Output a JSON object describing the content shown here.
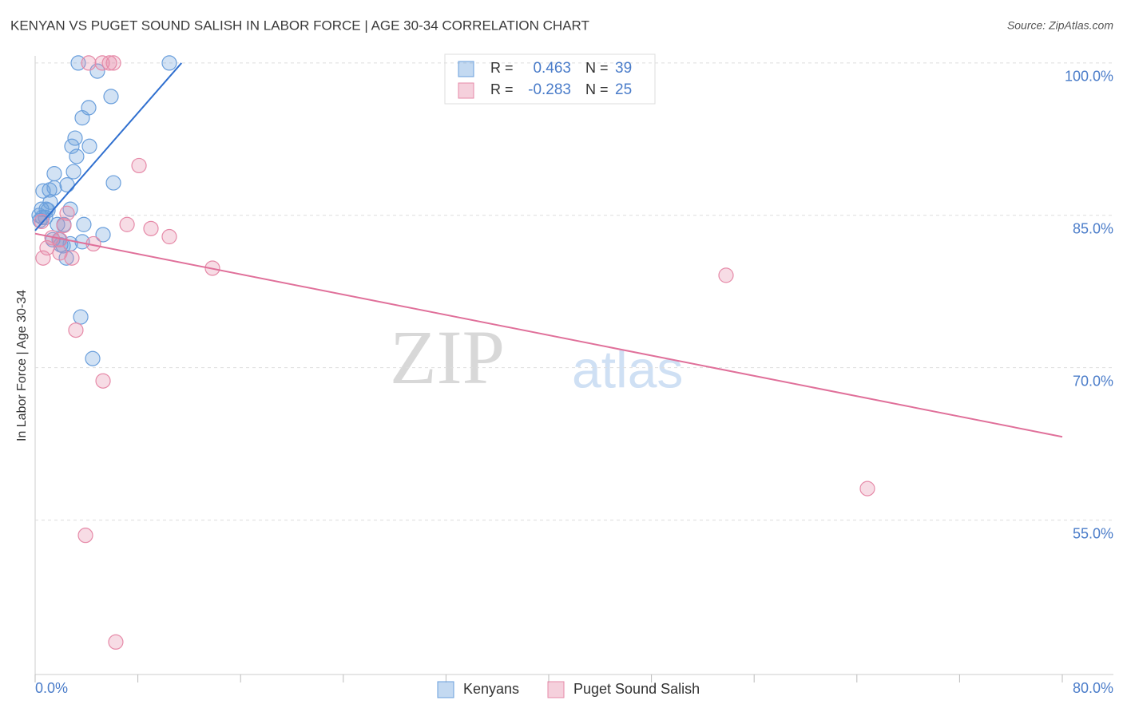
{
  "chart_data": {
    "type": "scatter",
    "title": "KENYAN VS PUGET SOUND SALISH IN LABOR FORCE | AGE 30-34 CORRELATION CHART",
    "source": "Source: ZipAtlas.com",
    "y_label": "In Labor Force | Age 30-34",
    "watermark": [
      "ZIP",
      "atlas"
    ],
    "xlim": [
      0,
      80
    ],
    "ylim": [
      39.8,
      100.7
    ],
    "xticks": [
      {
        "value": 0,
        "label": "0.0%"
      },
      {
        "value": 8,
        "label": null
      },
      {
        "value": 16,
        "label": null
      },
      {
        "value": 24,
        "label": null
      },
      {
        "value": 32,
        "label": null
      },
      {
        "value": 40,
        "label": null
      },
      {
        "value": 48,
        "label": null
      },
      {
        "value": 56,
        "label": null
      },
      {
        "value": 64,
        "label": null
      },
      {
        "value": 72,
        "label": null
      },
      {
        "value": 80,
        "label": "80.0%"
      }
    ],
    "yticks": [
      {
        "value": 55,
        "label": "55.0%"
      },
      {
        "value": 70,
        "label": "70.0%"
      },
      {
        "value": 85,
        "label": "85.0%"
      },
      {
        "value": 100,
        "label": "100.0%"
      }
    ],
    "grid": true,
    "series": [
      {
        "name": "Kenyans",
        "color": "#6a9fdc",
        "r_label": "R =",
        "r": "0.463",
        "n_label": "N =",
        "n": "39",
        "trend": {
          "color": "#2f6fcf",
          "x": [
            0,
            11.4
          ],
          "y": [
            83.5,
            100
          ]
        },
        "x": [
          3.36,
          10.45,
          4.85,
          5.91,
          4.17,
          3.67,
          3.11,
          4.23,
          2.86,
          3.23,
          1.49,
          2.99,
          6.1,
          2.49,
          0.62,
          1.12,
          1.49,
          1.18,
          0.5,
          0.87,
          2.74,
          0.31,
          0.56,
          0.81,
          1.74,
          2.24,
          3.79,
          5.29,
          1.37,
          1.87,
          1.99,
          2.74,
          3.67,
          2.18,
          2.43,
          3.55,
          4.48,
          0.37,
          1.0
        ],
        "values": [
          100,
          100,
          99.2,
          96.7,
          95.6,
          94.6,
          92.6,
          91.8,
          91.8,
          90.8,
          89.1,
          89.3,
          88.2,
          88.0,
          87.4,
          87.5,
          87.7,
          86.3,
          85.6,
          85.6,
          85.6,
          85.0,
          84.8,
          84.8,
          84.1,
          84.1,
          84.1,
          83.1,
          82.6,
          82.6,
          82.1,
          82.2,
          82.4,
          82.0,
          80.8,
          75.0,
          70.9,
          84.5,
          85.5
        ]
      },
      {
        "name": "Puget Sound Salish",
        "color": "#e68aa8",
        "r_label": "R =",
        "r": "-0.283",
        "n_label": "N =",
        "n": "25",
        "trend": {
          "color": "#e0709a",
          "x": [
            0,
            80
          ],
          "y": [
            83.2,
            63.2
          ]
        },
        "x": [
          4.17,
          5.23,
          5.79,
          6.1,
          8.09,
          7.16,
          9.02,
          10.45,
          13.81,
          53.81,
          2.49,
          2.24,
          0.93,
          0.62,
          1.31,
          1.93,
          2.86,
          4.54,
          3.17,
          5.29,
          3.92,
          6.28,
          64.82,
          1.93,
          0.5
        ],
        "values": [
          100,
          100,
          100,
          100,
          89.9,
          84.1,
          83.7,
          82.9,
          79.8,
          79.1,
          85.2,
          84.0,
          81.8,
          80.8,
          82.8,
          81.3,
          80.8,
          82.2,
          73.7,
          68.7,
          53.5,
          43.0,
          58.1,
          82.6,
          84.4
        ]
      }
    ]
  }
}
